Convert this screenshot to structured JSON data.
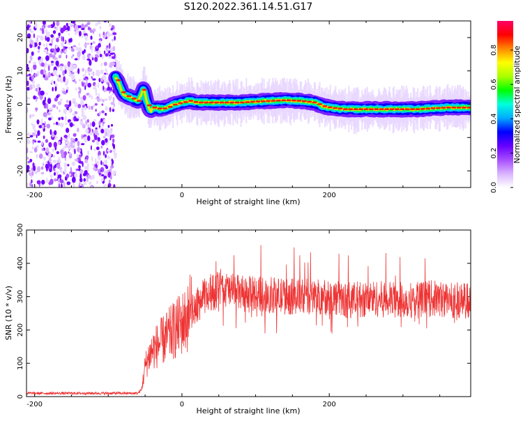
{
  "title": "S120.2022.361.14.51.G17",
  "colors": {
    "snr_line": "#ee3333",
    "axis": "#000000",
    "background": "#ffffff"
  },
  "chart_data": [
    {
      "type": "heatmap",
      "title": "",
      "xlabel": "Height of straight line (km)",
      "ylabel": "Frequency (Hz)",
      "xlim": [
        -211,
        392
      ],
      "ylim": [
        -25,
        25
      ],
      "x_ticks": [
        -200,
        0,
        200
      ],
      "y_ticks": [
        -20,
        -10,
        0,
        10,
        20
      ],
      "colorbar": {
        "label": "Normalized spectral amplitude",
        "range": [
          0.0,
          0.97
        ],
        "ticks": [
          0.0,
          0.2,
          0.4,
          0.6,
          0.8
        ],
        "colormap": [
          "#ffffff",
          "#d9b3ff",
          "#a64dff",
          "#6600ff",
          "#0000ff",
          "#00aaff",
          "#00ffdd",
          "#00ff00",
          "#aaff00",
          "#ffff00",
          "#ff8800",
          "#ff0000",
          "#ff0066"
        ]
      },
      "noise_region_x": [
        -211,
        -90
      ],
      "ridge": {
        "x": [
          -90,
          -85,
          -80,
          -70,
          -60,
          -55,
          -52,
          -48,
          -45,
          -42,
          -40,
          -35,
          -30,
          -20,
          -10,
          0,
          10,
          20,
          40,
          60,
          80,
          100,
          120,
          140,
          160,
          180,
          190,
          200,
          220,
          240,
          260,
          280,
          300,
          320,
          340,
          360,
          392
        ],
        "y": [
          8,
          6,
          3,
          2,
          1,
          3,
          5,
          1,
          -1,
          -2,
          -1,
          -1,
          -1.5,
          -1,
          0,
          0.5,
          1,
          0.5,
          0.5,
          0.5,
          0.5,
          0.8,
          1,
          1.2,
          1,
          0.5,
          -0.5,
          -1,
          -1.5,
          -1.5,
          -1.5,
          -1.5,
          -1.5,
          -1.5,
          -1.2,
          -1,
          -1
        ]
      }
    },
    {
      "type": "line",
      "title": "",
      "xlabel": "Height of straight line (km)",
      "ylabel": "SNR (10 * v/v)",
      "xlim": [
        -211,
        392
      ],
      "ylim": [
        0,
        500
      ],
      "x_ticks": [
        -200,
        0,
        200
      ],
      "y_ticks": [
        0,
        100,
        200,
        300,
        400,
        500
      ],
      "series": [
        {
          "x": [
            -211,
            -150,
            -100,
            -60,
            -55,
            -52,
            -50,
            -45,
            -40,
            -30,
            -20,
            -10,
            0,
            10,
            20,
            30,
            40,
            50,
            60,
            70,
            80,
            90,
            100,
            120,
            140,
            160,
            180,
            200,
            220,
            240,
            260,
            280,
            300,
            320,
            340,
            360,
            380,
            392
          ],
          "y": [
            10,
            10,
            10,
            10,
            20,
            60,
            90,
            120,
            140,
            160,
            180,
            200,
            220,
            240,
            270,
            300,
            310,
            320,
            320,
            315,
            310,
            305,
            310,
            305,
            300,
            300,
            300,
            300,
            290,
            290,
            295,
            290,
            290,
            290,
            295,
            290,
            290,
            285
          ]
        }
      ]
    }
  ]
}
